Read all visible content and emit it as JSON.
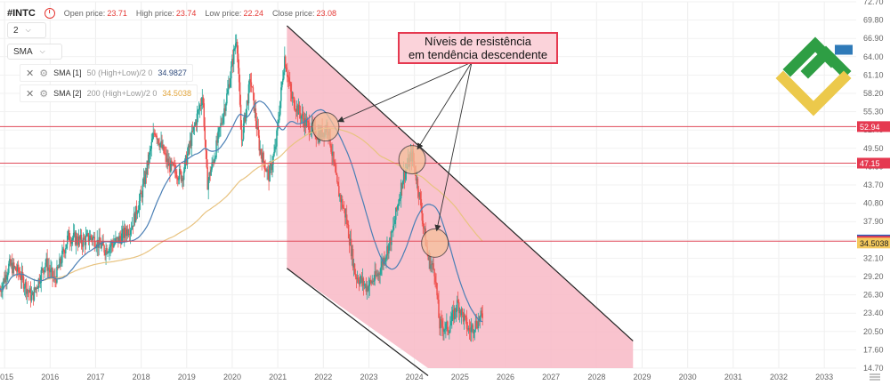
{
  "header": {
    "symbol": "#INTC",
    "open_label": "Open price:",
    "open_value": "23.71",
    "high_label": "High price:",
    "high_value": "23.74",
    "low_label": "Low price:",
    "low_value": "22.24",
    "close_label": "Close price:",
    "close_value": "23.08"
  },
  "controls": {
    "period_value": "2",
    "indicator_select": "SMA"
  },
  "indicators": [
    {
      "name": "SMA [1]",
      "params": "50 (High+Low)/2 0",
      "value": "34.9827"
    },
    {
      "name": "SMA [2]",
      "params": "200 (High+Low)/2 0",
      "value": "34.5038"
    }
  ],
  "annotation": {
    "line1": "Níveis de resistência",
    "line2": "em tendência descendente"
  },
  "colors": {
    "bull": "#26a69a",
    "bear": "#ef5350",
    "sma50": "#4a7fb5",
    "sma200": "#e8c380",
    "channel_fill": "#f8b9c6",
    "resistance_line": "#e04a5a",
    "accent": "#e53935"
  },
  "icons": {
    "logo": "brand-logo",
    "settings": "axis-settings-icon"
  },
  "chart_data": {
    "type": "candlestick",
    "x_axis": {
      "ticks": [
        "2015",
        "2016",
        "2017",
        "2018",
        "2019",
        "2020",
        "2021",
        "2022",
        "2023",
        "2024",
        "2025",
        "2026",
        "2027",
        "2028",
        "2029",
        "2030",
        "2031",
        "2032",
        "2033"
      ],
      "range": [
        2014.9,
        2033.7
      ]
    },
    "y_axis": {
      "ticks": [
        "72.70",
        "69.80",
        "66.90",
        "64.00",
        "61.10",
        "58.20",
        "55.30",
        "52.40",
        "49.50",
        "46.60",
        "43.70",
        "40.80",
        "37.90",
        "35.00",
        "32.10",
        "29.20",
        "26.30",
        "23.40",
        "20.50",
        "17.60",
        "14.70"
      ],
      "range": [
        14.7,
        72.7
      ]
    },
    "price_labels": [
      {
        "value": "52.94",
        "kind": "resistance"
      },
      {
        "value": "47.15",
        "kind": "resistance"
      },
      {
        "value": "34.9827",
        "kind": "sma50"
      },
      {
        "value": "34.80",
        "kind": "resistance"
      },
      {
        "value": "34.5038",
        "kind": "sma200"
      }
    ],
    "resistance_levels": [
      52.94,
      47.15,
      34.8
    ],
    "resistance_touches": [
      {
        "t": 2022.05,
        "p": 52.9
      },
      {
        "t": 2023.95,
        "p": 47.7
      },
      {
        "t": 2024.45,
        "p": 34.5
      }
    ],
    "channel": {
      "upper": [
        [
          2021.2,
          68.9
        ],
        [
          2028.8,
          19.0
        ]
      ],
      "lower": [
        [
          2021.2,
          30.5
        ],
        [
          2024.3,
          13.5
        ]
      ]
    },
    "anchors": [
      [
        2014.9,
        27.0
      ],
      [
        2015.1,
        31.0
      ],
      [
        2015.3,
        30.0
      ],
      [
        2015.6,
        25.8
      ],
      [
        2015.9,
        31.5
      ],
      [
        2016.1,
        28.5
      ],
      [
        2016.4,
        35.6
      ],
      [
        2016.7,
        34.7
      ],
      [
        2016.9,
        35.5
      ],
      [
        2017.2,
        33.5
      ],
      [
        2017.5,
        35.0
      ],
      [
        2017.8,
        37.4
      ],
      [
        2018.0,
        42.0
      ],
      [
        2018.3,
        52.5
      ],
      [
        2018.6,
        46.8
      ],
      [
        2018.9,
        45.0
      ],
      [
        2019.1,
        51.0
      ],
      [
        2019.35,
        58.0
      ],
      [
        2019.45,
        43.8
      ],
      [
        2019.6,
        48.0
      ],
      [
        2019.9,
        58.5
      ],
      [
        2020.1,
        67.5
      ],
      [
        2020.2,
        50.5
      ],
      [
        2020.4,
        60.5
      ],
      [
        2020.6,
        49.5
      ],
      [
        2020.8,
        45.0
      ],
      [
        2020.95,
        49.5
      ],
      [
        2021.15,
        64.0
      ],
      [
        2021.3,
        57.5
      ],
      [
        2021.6,
        53.5
      ],
      [
        2021.9,
        51.5
      ],
      [
        2022.1,
        53.0
      ],
      [
        2022.3,
        43.5
      ],
      [
        2022.5,
        38.5
      ],
      [
        2022.7,
        29.5
      ],
      [
        2022.95,
        27.5
      ],
      [
        2023.2,
        29.5
      ],
      [
        2023.5,
        35.5
      ],
      [
        2023.75,
        45.0
      ],
      [
        2023.95,
        48.5
      ],
      [
        2024.1,
        42.5
      ],
      [
        2024.3,
        32.0
      ],
      [
        2024.45,
        30.0
      ],
      [
        2024.55,
        21.5
      ],
      [
        2024.75,
        21.0
      ],
      [
        2024.95,
        25.0
      ],
      [
        2025.2,
        20.5
      ],
      [
        2025.5,
        23.08
      ]
    ]
  }
}
